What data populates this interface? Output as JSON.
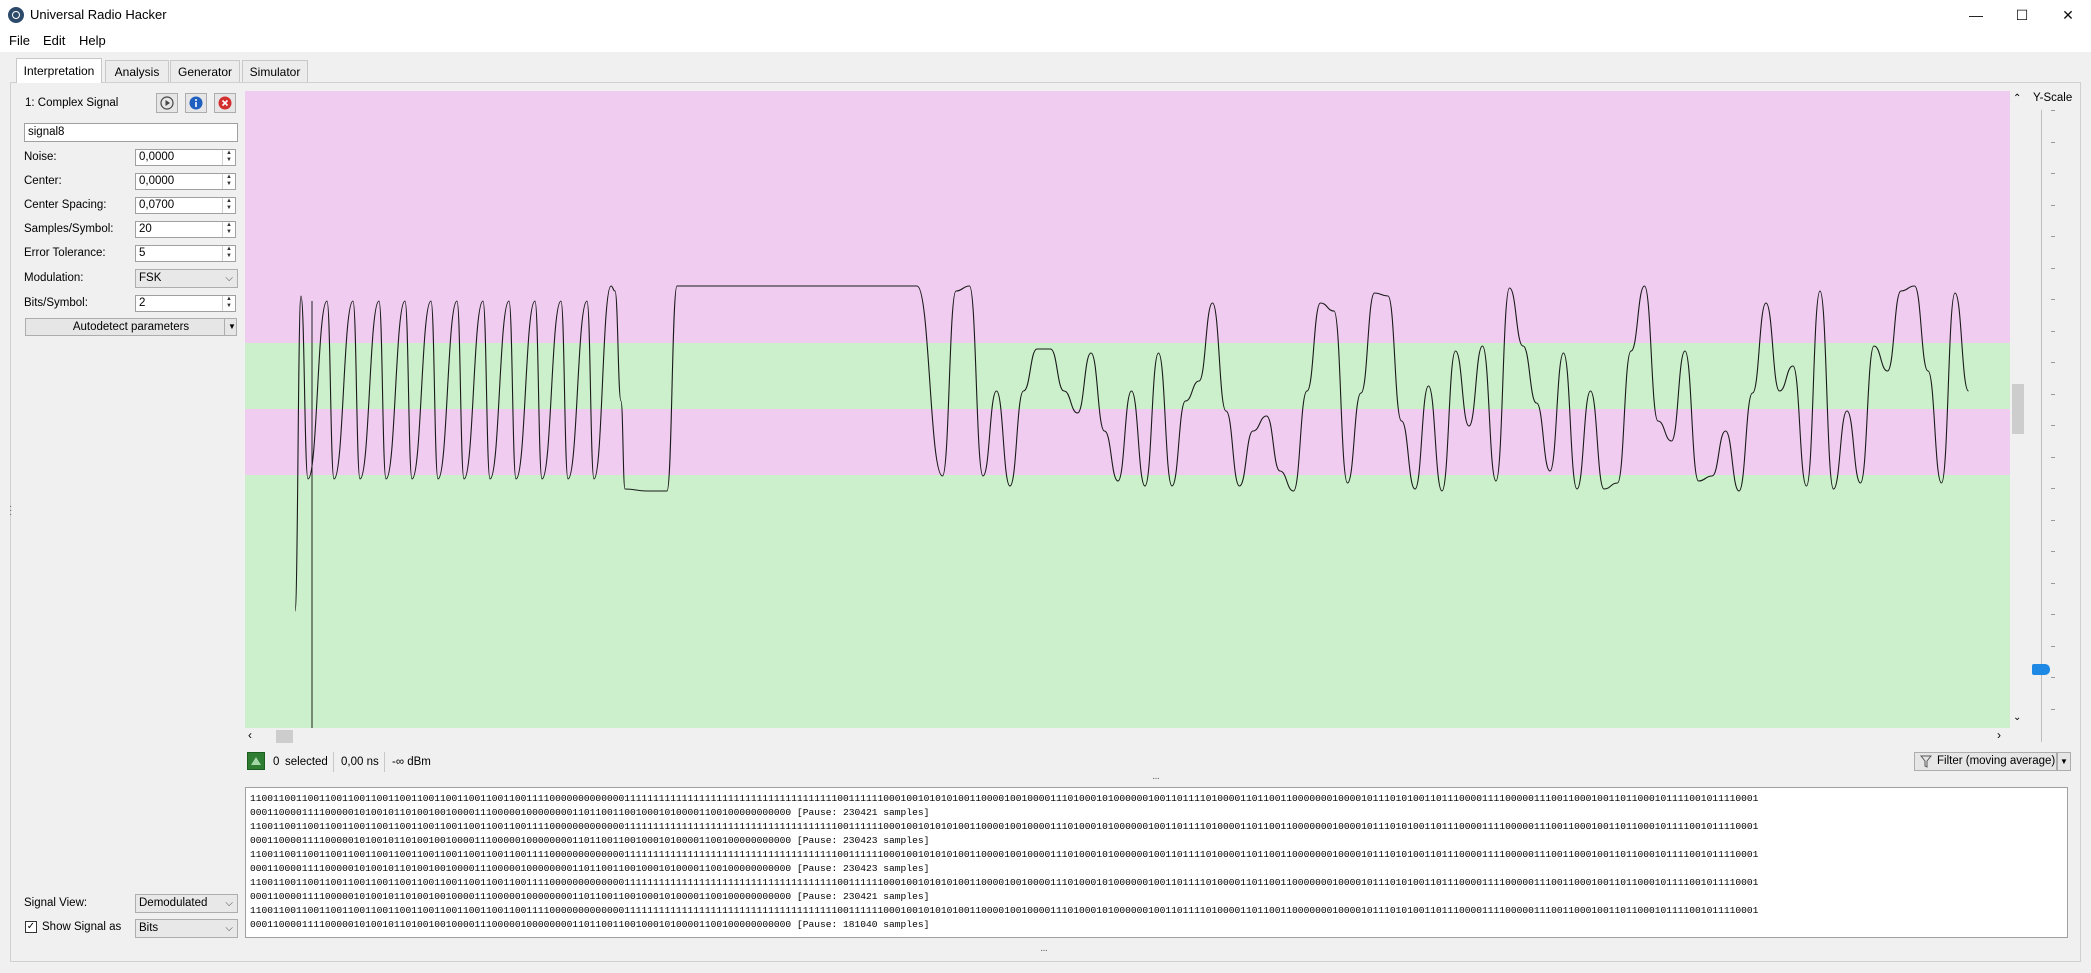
{
  "window": {
    "title": "Universal Radio Hacker",
    "minimize_glyph": "—",
    "maximize_glyph": "☐",
    "close_glyph": "✕"
  },
  "menu": {
    "file": "File",
    "edit": "Edit",
    "help": "Help"
  },
  "tabs": [
    {
      "label": "Interpretation",
      "active": true
    },
    {
      "label": "Analysis"
    },
    {
      "label": "Generator"
    },
    {
      "label": "Simulator"
    }
  ],
  "signal": {
    "header": "1:  Complex Signal",
    "name": "signal8",
    "params": [
      {
        "label": "Noise:",
        "value": "0,0000"
      },
      {
        "label": "Center:",
        "value": "0,0000"
      },
      {
        "label": "Center Spacing:",
        "value": "0,0700"
      },
      {
        "label": "Samples/Symbol:",
        "value": "20"
      },
      {
        "label": "Error Tolerance:",
        "value": "5"
      }
    ],
    "modulation_label": "Modulation:",
    "modulation_value": "FSK",
    "bits_symbol_label": "Bits/Symbol:",
    "bits_symbol_value": "2",
    "autodetect_label": "Autodetect parameters",
    "signal_view_label": "Signal View:",
    "signal_view_value": "Demodulated",
    "show_signal_as_label": "Show Signal as",
    "show_signal_as_value": "Bits",
    "show_signal_checked": true
  },
  "graph": {
    "yscale_label": "Y-Scale"
  },
  "colors": {
    "band_pink": "#f0cdf0",
    "band_green": "#cbf0cb",
    "play_icon": "#444444",
    "info_icon": "#1f5fbf",
    "close_icon": "#d32f2f",
    "slider_handle": "#1e88e5"
  },
  "status": {
    "selected_count": "0",
    "selected_label": "selected",
    "duration": "0,00 ns",
    "power": "-∞ dBm",
    "filter_label": "Filter (moving average)"
  },
  "protocol_lines": [
    "1100110011001100110011001100110011001100110011001111000000000000011111111111111111111111111111111111110011111100010010101010011000010010000111010001010000001001101111010000110110011000000010000101110101001101110000111100000111001100010011011000101111001011110001",
    "0001100001111000001010010110100100100001110000010000000011011001100100010100001100100000000000 [Pause: 230421 samples]",
    "1100110011001100110011001100110011001100110011001111000000000000011111111111111111111111111111111111110011111100010010101010011000010010000111010001010000001001101111010000110110011000000010000101110101001101110000111100000111001100010011011000101111001011110001",
    "0001100001111000001010010110100100100001110000010000000011011001100100010100001100100000000000 [Pause: 230423 samples]",
    "1100110011001100110011001100110011001100110011001111000000000000011111111111111111111111111111111111110011111100010010101010011000010010000111010001010000001001101111010000110110011000000010000101110101001101110000111100000111001100010011011000101111001011110001",
    "0001100001111000001010010110100100100001110000010000000011011001100100010100001100100000000000 [Pause: 230423 samples]",
    "1100110011001100110011001100110011001100110011001111000000000000011111111111111111111111111111111111110011111100010010101010011000010010000111010001010000001001101111010000110110011000000010000101110101001101110000111100000111001100010011011000101111001011110001",
    "0001100001111000001010010110100100100001110000010000000011011001100100010100001100100000000000 [Pause: 230421 samples]",
    "1100110011001100110011001100110011001100110011001111000000000000011111111111111111111111111111111111110011111100010010101010011000010010000111010001010000001001101111010000110110011000000010000101110101001101110000111100000111001100010011011000101111001011110001",
    "0001100001111000001010010110100100100001110000010000000011011001100100010100001100100000000000 [Pause: 181040 samples]"
  ]
}
